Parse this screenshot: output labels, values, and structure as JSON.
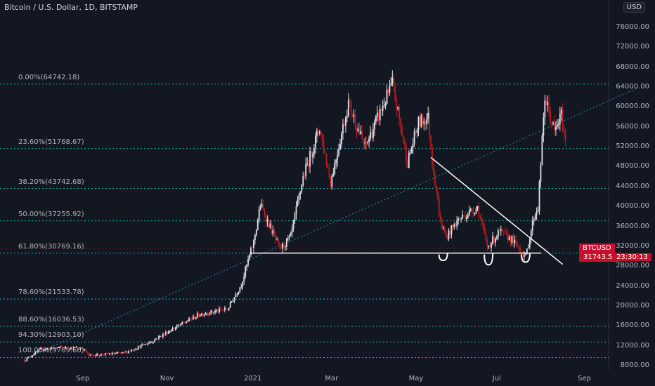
{
  "title": "Bitcoin / U.S. Dollar, 1D, BITSTAMP",
  "currency": "USD",
  "colors": {
    "background": "#131722",
    "up": "#e0e3eb",
    "down": "#b71c1c",
    "fib": "#26c6da",
    "trend": "#ffffff"
  },
  "chart_data": {
    "type": "candlestick",
    "yaxis": {
      "ticks": [
        "8000.00",
        "12000.00",
        "16000.00",
        "20000.00",
        "24000.00",
        "28000.00",
        "32000.00",
        "36000.00",
        "40000.00",
        "44000.00",
        "48000.00",
        "52000.00",
        "56000.00",
        "60000.00",
        "64000.00",
        "68000.00",
        "72000.00",
        "76000.00"
      ],
      "range": [
        7000,
        80000
      ]
    },
    "xaxis": {
      "ticks": [
        "Sep",
        "Nov",
        "2021",
        "Mar",
        "May",
        "Jul",
        "Sep"
      ]
    },
    "fib_levels": [
      {
        "label": "0.00%(64742.18)",
        "value": 64742.18
      },
      {
        "label": "23.60%(51768.67)",
        "value": 51768.67
      },
      {
        "label": "38.20%(43742.68)",
        "value": 43742.68
      },
      {
        "label": "50.00%(37255.92)",
        "value": 37255.92
      },
      {
        "label": "61.80%(30769.16)",
        "value": 30769.16
      },
      {
        "label": "78.60%(21533.78)",
        "value": 21533.78
      },
      {
        "label": "88.60%(16036.53)",
        "value": 16036.53
      },
      {
        "label": "94.30%(12903.10)",
        "value": 12903.1
      },
      {
        "label": "100.00%(9769.66)",
        "value": 9769.66
      }
    ],
    "price_path": [
      [
        "2020-07-20",
        9200
      ],
      [
        "2020-08-01",
        11400
      ],
      [
        "2020-08-15",
        11800
      ],
      [
        "2020-09-01",
        11600
      ],
      [
        "2020-09-05",
        10200
      ],
      [
        "2020-10-01",
        10700
      ],
      [
        "2020-10-20",
        12900
      ],
      [
        "2020-11-05",
        15500
      ],
      [
        "2020-11-25",
        18500
      ],
      [
        "2020-12-15",
        19500
      ],
      [
        "2020-12-25",
        24500
      ],
      [
        "2021-01-03",
        33000
      ],
      [
        "2021-01-08",
        40500
      ],
      [
        "2021-01-15",
        36000
      ],
      [
        "2021-01-22",
        31500
      ],
      [
        "2021-01-30",
        34000
      ],
      [
        "2021-02-08",
        46000
      ],
      [
        "2021-02-20",
        56000
      ],
      [
        "2021-02-28",
        45000
      ],
      [
        "2021-03-13",
        61000
      ],
      [
        "2021-03-25",
        52000
      ],
      [
        "2021-04-14",
        64742
      ],
      [
        "2021-04-25",
        49000
      ],
      [
        "2021-05-03",
        57000
      ],
      [
        "2021-05-10",
        58000
      ],
      [
        "2021-05-13",
        49500
      ],
      [
        "2021-05-19",
        37000
      ],
      [
        "2021-05-23",
        34000
      ],
      [
        "2021-06-01",
        37500
      ],
      [
        "2021-06-15",
        40000
      ],
      [
        "2021-06-22",
        32000
      ],
      [
        "2021-07-01",
        35000
      ],
      [
        "2021-07-10",
        33500
      ],
      [
        "2021-07-20",
        30000
      ],
      [
        "2021-07-26",
        38000
      ],
      [
        "2021-07-29",
        40000
      ],
      [
        "2021-08-03",
        62000
      ],
      [
        "2021-08-10",
        55000
      ],
      [
        "2021-08-15",
        58500
      ],
      [
        "2021-08-20",
        49000
      ],
      [
        "2021-08-26",
        54000
      ],
      [
        "2021-08-31",
        60500
      ],
      [
        "2021-09-03",
        64500
      ],
      [
        "2021-09-05",
        58000
      ]
    ],
    "support_value": 30769.16,
    "trendline": [
      [
        "2021-05-12",
        50000
      ],
      [
        "2021-08-16",
        28500
      ]
    ],
    "diagonal": [
      [
        "2020-07-20",
        9500
      ],
      [
        "2021-10-10",
        64000
      ]
    ],
    "last_price": {
      "symbol": "BTCUSD",
      "value": "31743.57",
      "countdown": "23:30:13"
    }
  }
}
